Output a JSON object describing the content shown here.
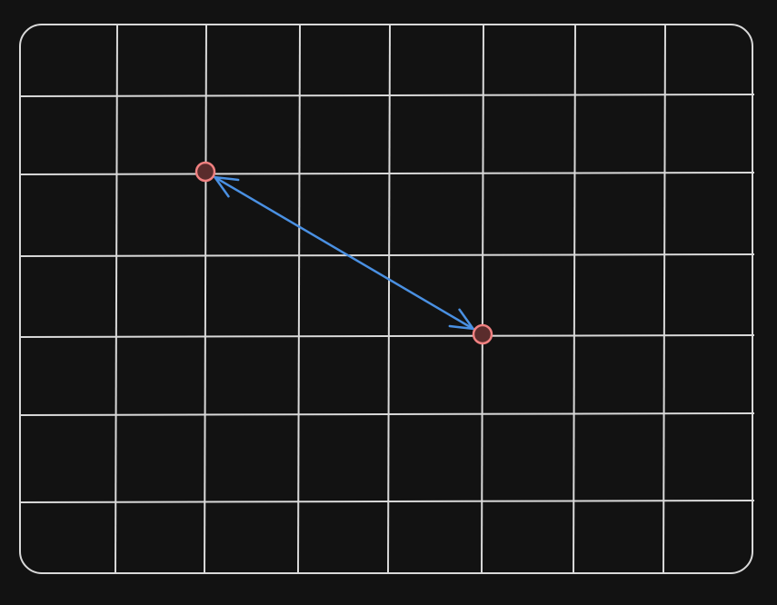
{
  "colors": {
    "background": "#121212",
    "grid_line": "#d9d9d9",
    "point_fill": "#5a2c2c",
    "point_stroke": "#f08080",
    "arrow": "#4a90e2"
  },
  "grid": {
    "columns": 8,
    "rows": 7
  },
  "points": [
    {
      "name": "point-a",
      "col": 2,
      "row": 2
    },
    {
      "name": "point-b",
      "col": 5,
      "row": 4
    }
  ],
  "arrow": {
    "from": "point-a",
    "to": "point-b",
    "bidirectional": true
  }
}
